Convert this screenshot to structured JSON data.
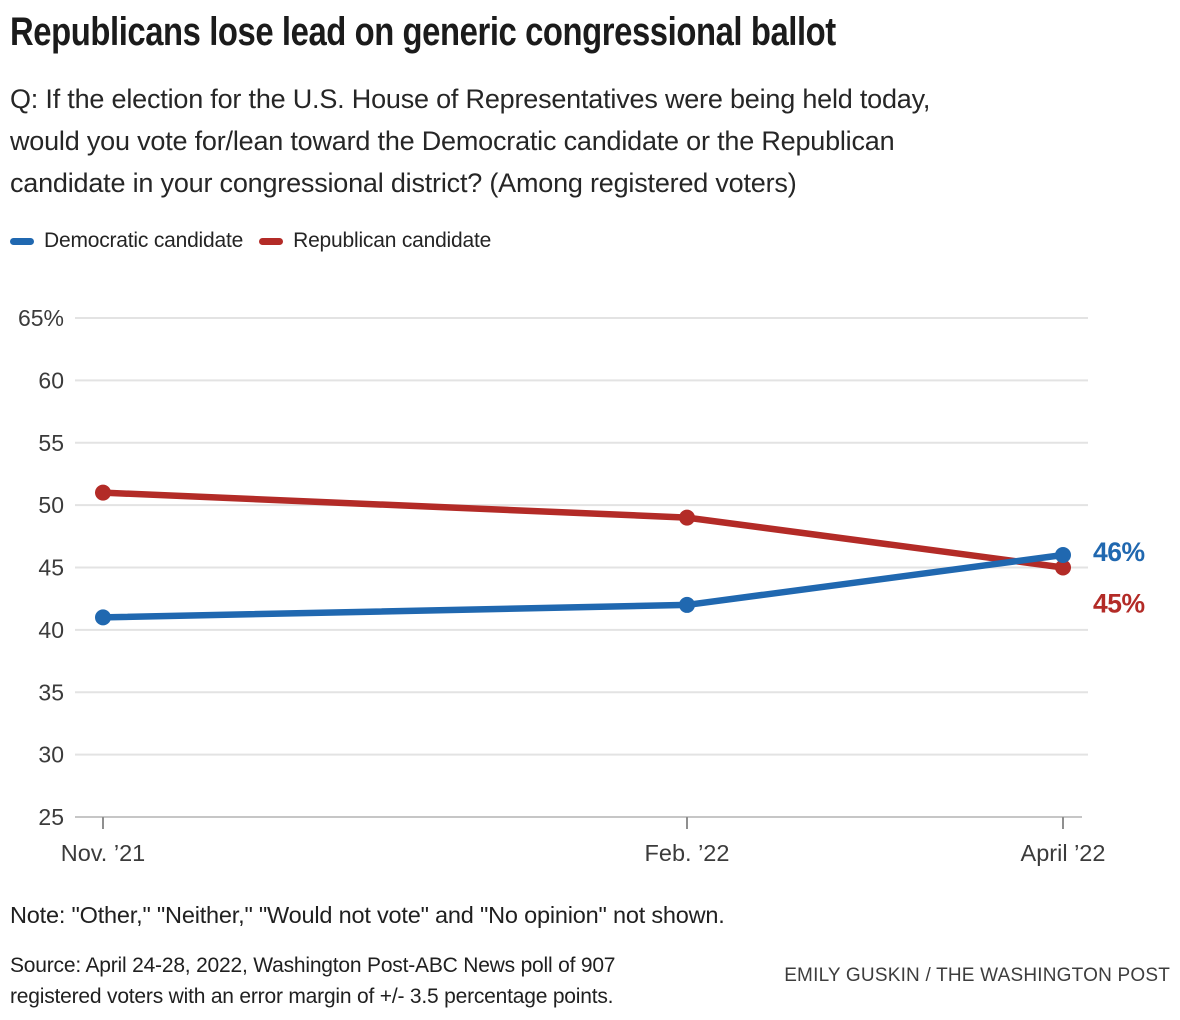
{
  "chart_data": {
    "type": "line",
    "title": "Republicans lose lead on generic congressional ballot",
    "subtitle": "Q: If the election for the U.S. House of Representatives were being held today,\nwould you vote for/lean toward the Democratic candidate or the Republican\ncandidate in your congressional district? (Among registered voters)",
    "categories": [
      "Nov. ’21",
      "Feb. ’22",
      "April ’22"
    ],
    "series": [
      {
        "name": "Democratic candidate",
        "color": "#2068b0",
        "values": [
          41,
          42,
          46
        ],
        "end_label": "46%"
      },
      {
        "name": "Republican candidate",
        "color": "#b32b27",
        "values": [
          51,
          49,
          45
        ],
        "end_label": "45%"
      }
    ],
    "xlabel": "",
    "ylabel": "",
    "ylim": [
      25,
      65
    ],
    "yticks": [
      25,
      30,
      35,
      40,
      45,
      50,
      55,
      60,
      65
    ],
    "ytick_top_label": "65%",
    "grid": true,
    "legend_position": "top-left",
    "gridline_color": "#e3e3e3",
    "baseline_color": "#c6c6c6",
    "axis_text_color": "#3b3b3b"
  },
  "footer": {
    "note": "Note: \"Other,\" \"Neither,\" \"Would not vote\" and \"No opinion\" not shown.",
    "source": "Source: April 24-28, 2022, Washington Post-ABC News poll of 907\nregistered voters with an error margin of +/- 3.5 percentage points.",
    "credit": "EMILY GUSKIN / THE WASHINGTON POST"
  }
}
